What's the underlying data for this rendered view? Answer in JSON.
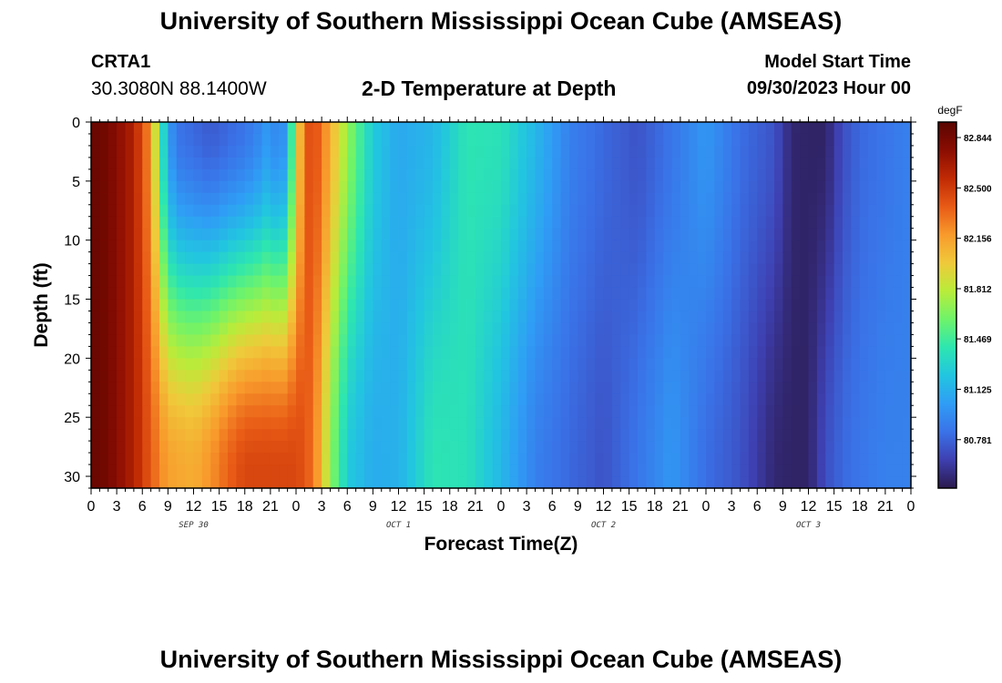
{
  "page": {
    "title": "University of Southern Mississippi Ocean Cube (AMSEAS)",
    "footer_title": "University of Southern Mississippi Ocean Cube (AMSEAS)",
    "station_id": "CRTA1",
    "station_coords": "30.3080N  88.1400W",
    "plot_title": "2-D Temperature at Depth",
    "model_start_label": "Model Start Time",
    "model_start_value": "09/30/2023 Hour 00"
  },
  "chart_data": {
    "type": "heatmap",
    "title": "2-D Temperature at Depth",
    "xlabel": "Forecast Time(Z)",
    "ylabel": "Depth (ft)",
    "x_unit": "hours since 09/30/2023 00Z",
    "xlim": [
      0,
      96
    ],
    "ylim": [
      31,
      0
    ],
    "x_ticks": [
      0,
      3,
      6,
      9,
      12,
      15,
      18,
      21,
      24,
      27,
      30,
      33,
      36,
      39,
      42,
      45,
      48,
      51,
      54,
      57,
      60,
      63,
      66,
      69,
      72,
      75,
      78,
      81,
      84,
      87,
      90,
      93,
      96
    ],
    "x_tick_labels": [
      "0",
      "3",
      "6",
      "9",
      "12",
      "15",
      "18",
      "21",
      "0",
      "3",
      "6",
      "9",
      "12",
      "15",
      "18",
      "21",
      "0",
      "3",
      "6",
      "9",
      "12",
      "15",
      "18",
      "21",
      "0",
      "3",
      "6",
      "9",
      "12",
      "15",
      "18",
      "21",
      "0"
    ],
    "y_ticks": [
      0,
      5,
      10,
      15,
      20,
      25,
      30
    ],
    "y_tick_labels": [
      "0",
      "5",
      "10",
      "15",
      "20",
      "25",
      "30"
    ],
    "date_labels": [
      {
        "x": 12,
        "label": "SEP 30"
      },
      {
        "x": 36,
        "label": "OCT 1"
      },
      {
        "x": 60,
        "label": "OCT 2"
      },
      {
        "x": 84,
        "label": "OCT 3"
      }
    ],
    "colorbar": {
      "unit": "degF",
      "min": 80.45,
      "max": 82.95,
      "tick_values": [
        82.844,
        82.5,
        82.156,
        81.812,
        81.469,
        81.125,
        80.781
      ],
      "tick_labels": [
        "82.844",
        "82.500",
        "82.156",
        "81.812",
        "81.469",
        "81.125",
        "80.781"
      ],
      "colors": [
        "#2b1a4d",
        "#3e3fb0",
        "#3a72e8",
        "#2f9df5",
        "#22c5e0",
        "#2de6b0",
        "#6ff36a",
        "#b9ec3a",
        "#f0c93a",
        "#f89a2c",
        "#e85a16",
        "#c02a04",
        "#8a0d02",
        "#5a0501"
      ]
    },
    "surface_temperature_degF": {
      "x": [
        0,
        2,
        5,
        7,
        8,
        9,
        10,
        14,
        18,
        20,
        21,
        22,
        23,
        24,
        25,
        26,
        27,
        28,
        30,
        33,
        36,
        40,
        44,
        48,
        52,
        56,
        60,
        64,
        68,
        72,
        76,
        80,
        82,
        84,
        86,
        88,
        90,
        93,
        96
      ],
      "values": [
        82.9,
        82.84,
        82.62,
        82.2,
        81.55,
        81.05,
        80.85,
        80.75,
        80.85,
        80.95,
        81.05,
        80.85,
        81.1,
        81.8,
        82.35,
        82.45,
        82.3,
        82.1,
        81.7,
        81.25,
        81.08,
        81.15,
        81.4,
        81.38,
        81.15,
        80.9,
        80.8,
        80.72,
        80.85,
        81.0,
        80.82,
        80.72,
        80.52,
        80.5,
        80.5,
        80.7,
        80.8,
        80.85,
        80.9
      ]
    },
    "bottom_temperature_degF": {
      "x": [
        0,
        2,
        5,
        8,
        9,
        12,
        14,
        16,
        18,
        21,
        24,
        25,
        26,
        27,
        28,
        30,
        33,
        36,
        40,
        44,
        48,
        52,
        56,
        60,
        64,
        68,
        72,
        76,
        80,
        82,
        84,
        86,
        88,
        90,
        93,
        96
      ],
      "values": [
        82.9,
        82.84,
        82.62,
        82.25,
        82.15,
        82.1,
        82.2,
        82.35,
        82.45,
        82.45,
        82.45,
        82.4,
        82.3,
        82.05,
        81.7,
        81.25,
        81.1,
        81.12,
        81.4,
        81.38,
        81.15,
        80.9,
        80.8,
        80.72,
        80.85,
        81.0,
        80.82,
        80.72,
        80.52,
        80.5,
        80.5,
        80.7,
        80.8,
        80.85,
        80.9,
        80.9
      ]
    }
  }
}
